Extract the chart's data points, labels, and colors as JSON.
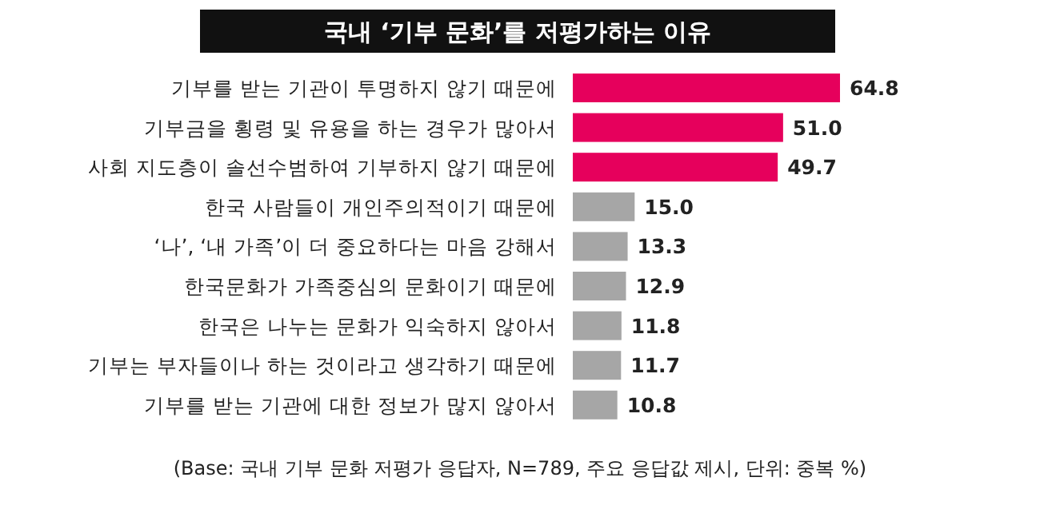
{
  "chart_data": {
    "type": "bar",
    "orientation": "horizontal",
    "title": "국내 ‘기부 문화’를 저평가하는 이유",
    "categories": [
      "기부를 받는 기관이 투명하지 않기 때문에",
      "기부금을 횡령 및 유용을 하는 경우가 많아서",
      "사회 지도층이 솔선수범하여 기부하지 않기 때문에",
      "한국 사람들이 개인주의적이기 때문에",
      "‘나’, ‘내 가족’이 더 중요하다는 마음 강해서",
      "한국문화가 가족중심의 문화이기 때문에",
      "한국은 나누는 문화가 익숙하지 않아서",
      "기부는 부자들이나 하는 것이라고 생각하기 때문에",
      "기부를 받는 기관에 대한 정보가 많지 않아서"
    ],
    "values": [
      64.8,
      51.0,
      49.7,
      15.0,
      13.3,
      12.9,
      11.8,
      11.7,
      10.8
    ],
    "value_labels": [
      "64.8",
      "51.0",
      "49.7",
      "15.0",
      "13.3",
      "12.9",
      "11.8",
      "11.7",
      "10.8"
    ],
    "colors": [
      "#e6005c",
      "#e6005c",
      "#e6005c",
      "#a6a6a6",
      "#a6a6a6",
      "#a6a6a6",
      "#a6a6a6",
      "#a6a6a6",
      "#a6a6a6"
    ],
    "annotations": [
      "(Base: 국내 기부 문화 저평가 응답자, N=789, 주요 응답값 제시, 단위: 중복 %)"
    ]
  }
}
